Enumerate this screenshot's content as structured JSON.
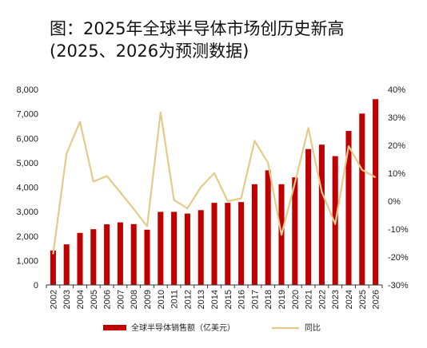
{
  "title": {
    "line1": "图：2025年全球半导体市场创历史新高",
    "line2": "(2025、2026为预测数据)"
  },
  "colors": {
    "bar": "#C00000",
    "line": "#E2CB8B",
    "axis": "#333333"
  },
  "chart_data": {
    "type": "bar",
    "categories": [
      "2002",
      "2003",
      "2004",
      "2005",
      "2006",
      "2007",
      "2008",
      "2009",
      "2010",
      "2011",
      "2012",
      "2013",
      "2014",
      "2015",
      "2016",
      "2017",
      "2018",
      "2019",
      "2020",
      "2021",
      "2022",
      "2023",
      "2024",
      "2025",
      "2026"
    ],
    "series": [
      {
        "name": "全球半导体销售额（亿美元）",
        "type": "bar",
        "axis": "left",
        "values": [
          1410,
          1660,
          2130,
          2280,
          2480,
          2560,
          2490,
          2260,
          2990,
          2990,
          2920,
          3060,
          3360,
          3360,
          3390,
          4120,
          4690,
          4120,
          4400,
          5560,
          5740,
          5270,
          6300,
          7010,
          7600
        ]
      },
      {
        "name": "同比",
        "type": "line",
        "axis": "right",
        "values": [
          -19.0,
          17.0,
          28.4,
          7.0,
          9.0,
          3.2,
          -2.8,
          -9.0,
          31.8,
          0.4,
          -2.6,
          5.0,
          10.0,
          0.0,
          1.0,
          21.6,
          13.7,
          -12.1,
          6.5,
          26.2,
          3.3,
          -8.2,
          19.7,
          11.2,
          8.5
        ]
      }
    ],
    "yleft": {
      "ylim": [
        0,
        8000
      ],
      "ticks": [
        "0",
        "1,000",
        "2,000",
        "3,000",
        "4,000",
        "5,000",
        "6,000",
        "7,000",
        "8,000"
      ]
    },
    "yright": {
      "ylim": [
        -30,
        40
      ],
      "ticks": [
        "-30%",
        "-20%",
        "-10%",
        "0%",
        "10%",
        "20%",
        "30%",
        "40%"
      ]
    },
    "legend": {
      "position": "bottom",
      "bar_label": "全球半导体销售额（亿美元）",
      "line_label": "同比"
    },
    "grid": false
  }
}
